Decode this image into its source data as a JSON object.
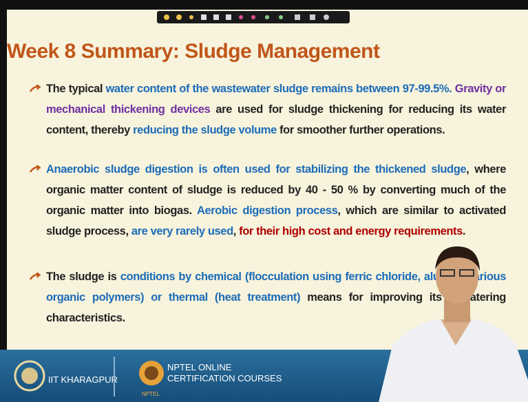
{
  "header": {
    "title": "Week 8 Summary: Sludge Management"
  },
  "bullets": [
    {
      "segments": [
        {
          "text": "The typical ",
          "style": "plain"
        },
        {
          "text": "water content of the wastewater sludge remains between 97-99.5%. ",
          "style": "blue"
        },
        {
          "text": "Gravity or mechanical thickening devices",
          "style": "purple"
        },
        {
          "text": " are used for sludge thickening for reducing its water content, thereby ",
          "style": "plain"
        },
        {
          "text": "reducing the sludge volume",
          "style": "blue"
        },
        {
          "text": " for smoother further operations.",
          "style": "plain"
        }
      ]
    },
    {
      "segments": [
        {
          "text": "Anaerobic sludge digestion is often used for stabilizing the thickened sludge",
          "style": "blue"
        },
        {
          "text": ", where organic matter content of sludge is reduced by 40 - 50 % by converting much of the organic matter into biogas. ",
          "style": "plain"
        },
        {
          "text": "Aerobic digestion process",
          "style": "blue"
        },
        {
          "text": ", which are similar to activated sludge process, ",
          "style": "plain"
        },
        {
          "text": "are very rarely used",
          "style": "blue"
        },
        {
          "text": ", ",
          "style": "plain"
        },
        {
          "text": "for their high cost and energy requirements",
          "style": "red"
        },
        {
          "text": ".",
          "style": "plain"
        }
      ]
    },
    {
      "segments": [
        {
          "text": "The sludge is ",
          "style": "plain"
        },
        {
          "text": "conditions by chemical (flocculation using ferric chloride, alum or various organic polymers) or thermal (heat treatment)",
          "style": "blue"
        },
        {
          "text": " means for improving its dewatering characteristics.",
          "style": "plain"
        }
      ]
    }
  ],
  "footer": {
    "institute": "IIT KHARAGPUR",
    "program": [
      "NPTEL ONLINE",
      "CERTIFICATION COURSES"
    ],
    "logo_caption": "NPTEL"
  }
}
